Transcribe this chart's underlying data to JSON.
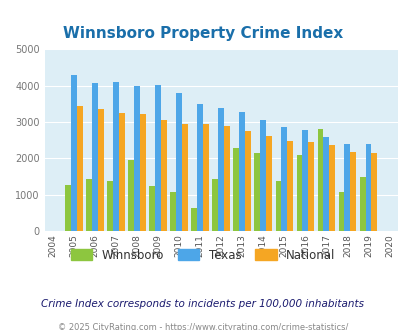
{
  "title": "Winnsboro Property Crime Index",
  "years": [
    2004,
    2005,
    2006,
    2007,
    2008,
    2009,
    2010,
    2011,
    2012,
    2013,
    2014,
    2015,
    2016,
    2017,
    2018,
    2019,
    2020
  ],
  "winnsboro": [
    null,
    1280,
    1420,
    1380,
    1950,
    1250,
    1070,
    620,
    1440,
    2300,
    2150,
    1380,
    2100,
    2820,
    1070,
    1490,
    null
  ],
  "texas": [
    null,
    4300,
    4080,
    4100,
    4000,
    4030,
    3810,
    3500,
    3380,
    3270,
    3060,
    2860,
    2780,
    2580,
    2400,
    2390,
    null
  ],
  "national": [
    null,
    3450,
    3350,
    3260,
    3230,
    3060,
    2960,
    2950,
    2890,
    2750,
    2620,
    2480,
    2460,
    2360,
    2190,
    2140,
    null
  ],
  "ylim": [
    0,
    5000
  ],
  "yticks": [
    0,
    1000,
    2000,
    3000,
    4000,
    5000
  ],
  "bar_width": 0.28,
  "colors": {
    "winnsboro": "#8dc63f",
    "texas": "#4da6e8",
    "national": "#f5a623"
  },
  "bg_color": "#ddeef6",
  "grid_color": "#ffffff",
  "title_color": "#1a6faa",
  "footer_note": "Crime Index corresponds to incidents per 100,000 inhabitants",
  "copyright": "© 2025 CityRating.com - https://www.cityrating.com/crime-statistics/",
  "legend_labels": [
    "Winnsboro",
    "Texas",
    "National"
  ]
}
